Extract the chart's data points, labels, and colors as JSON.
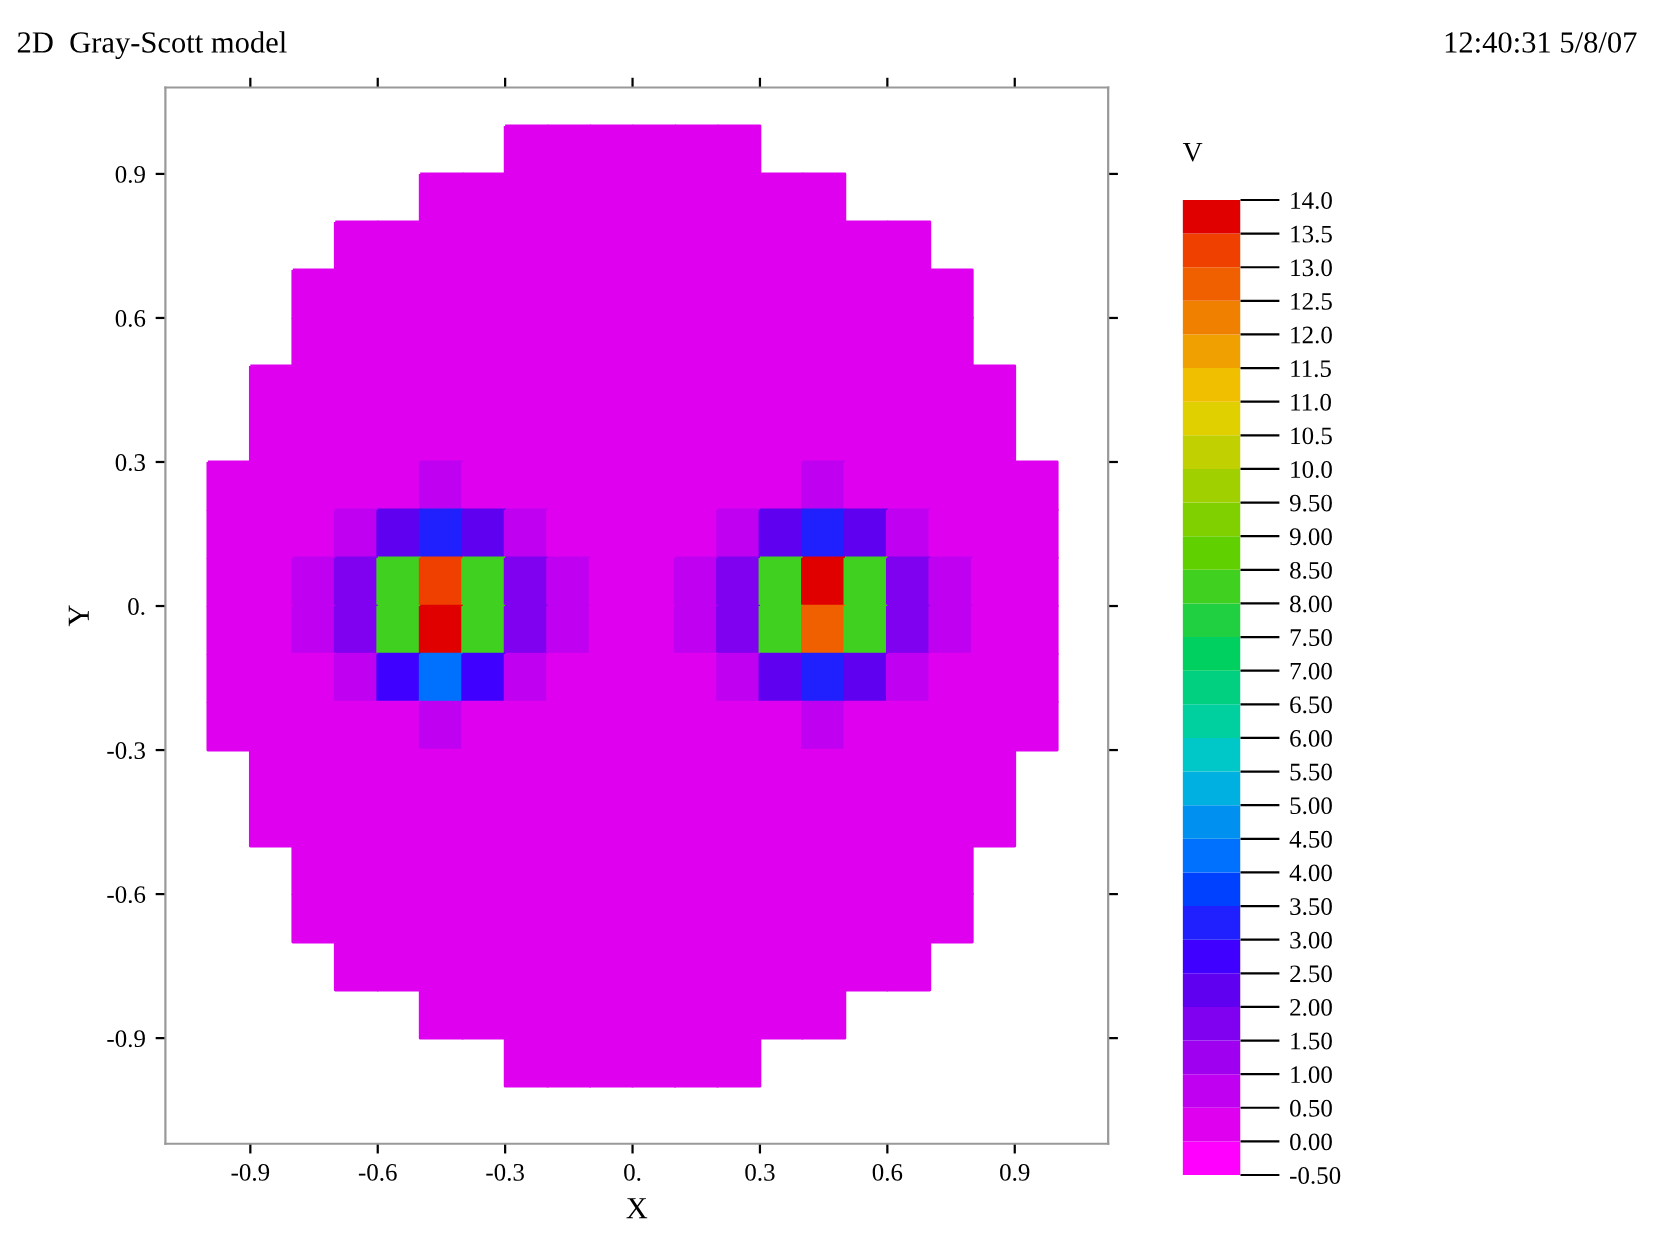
{
  "chart_data": {
    "type": "heatmap",
    "title": "2D  Gray-Scott model",
    "xlabel": "X",
    "ylabel": "Y",
    "clabel": "V",
    "annotations": [
      "12:40:31 5/8/07"
    ],
    "x": [
      -0.95,
      -0.85,
      -0.75,
      -0.65,
      -0.55,
      -0.45,
      -0.35,
      -0.25,
      -0.15,
      -0.05,
      0.05,
      0.15,
      0.25,
      0.35,
      0.45,
      0.55,
      0.65,
      0.75,
      0.85,
      0.95
    ],
    "y": [
      0.95,
      0.85,
      0.75,
      0.65,
      0.55,
      0.45,
      0.35,
      0.25,
      0.15,
      0.05,
      -0.05,
      -0.15,
      -0.25,
      -0.35,
      -0.45,
      -0.55,
      -0.65,
      -0.75,
      -0.85,
      -0.95
    ],
    "cells": [
      [
        null,
        null,
        null,
        null,
        null,
        null,
        null,
        0.2,
        0.2,
        0.2,
        0.2,
        0.2,
        0.2,
        null,
        null,
        null,
        null,
        null,
        null,
        null
      ],
      [
        null,
        null,
        null,
        null,
        null,
        0.2,
        0.2,
        0.2,
        0.2,
        0.2,
        0.2,
        0.2,
        0.2,
        0.2,
        0.2,
        null,
        null,
        null,
        null,
        null
      ],
      [
        null,
        null,
        null,
        0.2,
        0.2,
        0.2,
        0.2,
        0.2,
        0.2,
        0.2,
        0.2,
        0.2,
        0.2,
        0.2,
        0.2,
        0.2,
        0.2,
        null,
        null,
        null
      ],
      [
        null,
        null,
        0.2,
        0.2,
        0.2,
        0.2,
        0.2,
        0.2,
        0.2,
        0.2,
        0.2,
        0.2,
        0.2,
        0.2,
        0.2,
        0.2,
        0.2,
        0.2,
        null,
        null
      ],
      [
        null,
        null,
        0.2,
        0.2,
        0.2,
        0.2,
        0.2,
        0.2,
        0.2,
        0.2,
        0.2,
        0.2,
        0.2,
        0.2,
        0.2,
        0.2,
        0.2,
        0.2,
        null,
        null
      ],
      [
        null,
        0.2,
        0.2,
        0.2,
        0.2,
        0.2,
        0.2,
        0.2,
        0.2,
        0.2,
        0.2,
        0.2,
        0.2,
        0.2,
        0.2,
        0.2,
        0.2,
        0.2,
        0.2,
        null
      ],
      [
        null,
        0.2,
        0.2,
        0.2,
        0.2,
        0.2,
        0.2,
        0.2,
        0.2,
        0.2,
        0.2,
        0.2,
        0.2,
        0.2,
        0.2,
        0.2,
        0.2,
        0.2,
        0.2,
        null
      ],
      [
        0.2,
        0.2,
        0.2,
        0.2,
        0.2,
        0.5,
        0.2,
        0.2,
        0.2,
        0.2,
        0.2,
        0.2,
        0.2,
        0.2,
        0.5,
        0.2,
        0.2,
        0.2,
        0.2,
        0.2
      ],
      [
        0.2,
        0.2,
        0.2,
        0.5,
        2,
        3,
        2,
        0.5,
        0.2,
        0.2,
        0.2,
        0.2,
        0.5,
        2,
        3,
        2,
        0.5,
        0.2,
        0.2,
        0.2
      ],
      [
        0.2,
        0.2,
        0.5,
        1.5,
        8,
        13,
        8,
        1.5,
        0.5,
        0.2,
        0.2,
        0.5,
        1.5,
        8,
        13.5,
        8,
        1.5,
        0.5,
        0.2,
        0.2
      ],
      [
        0.2,
        0.2,
        0.5,
        1.5,
        8,
        14,
        8,
        1.5,
        0.5,
        0.2,
        0.2,
        0.5,
        1.5,
        8,
        12.5,
        8,
        1.5,
        0.5,
        0.2,
        0.2
      ],
      [
        0.2,
        0.2,
        0.2,
        0.5,
        2.5,
        4,
        2.5,
        0.5,
        0.2,
        0.2,
        0.2,
        0.2,
        0.5,
        2,
        3,
        2,
        0.5,
        0.2,
        0.2,
        0.2
      ],
      [
        0.2,
        0.2,
        0.2,
        0.2,
        0.2,
        0.5,
        0.2,
        0.2,
        0.2,
        0.2,
        0.2,
        0.2,
        0.2,
        0.2,
        0.5,
        0.2,
        0.2,
        0.2,
        0.2,
        0.2
      ],
      [
        null,
        0.2,
        0.2,
        0.2,
        0.2,
        0.2,
        0.2,
        0.2,
        0.2,
        0.2,
        0.2,
        0.2,
        0.2,
        0.2,
        0.2,
        0.2,
        0.2,
        0.2,
        0.2,
        null
      ],
      [
        null,
        0.2,
        0.2,
        0.2,
        0.2,
        0.2,
        0.2,
        0.2,
        0.2,
        0.2,
        0.2,
        0.2,
        0.2,
        0.2,
        0.2,
        0.2,
        0.2,
        0.2,
        0.2,
        null
      ],
      [
        null,
        null,
        0.2,
        0.2,
        0.2,
        0.2,
        0.2,
        0.2,
        0.2,
        0.2,
        0.2,
        0.2,
        0.2,
        0.2,
        0.2,
        0.2,
        0.2,
        0.2,
        null,
        null
      ],
      [
        null,
        null,
        0.2,
        0.2,
        0.2,
        0.2,
        0.2,
        0.2,
        0.2,
        0.2,
        0.2,
        0.2,
        0.2,
        0.2,
        0.2,
        0.2,
        0.2,
        0.2,
        null,
        null
      ],
      [
        null,
        null,
        null,
        0.2,
        0.2,
        0.2,
        0.2,
        0.2,
        0.2,
        0.2,
        0.2,
        0.2,
        0.2,
        0.2,
        0.2,
        0.2,
        0.2,
        null,
        null,
        null
      ],
      [
        null,
        null,
        null,
        null,
        null,
        0.2,
        0.2,
        0.2,
        0.2,
        0.2,
        0.2,
        0.2,
        0.2,
        0.2,
        0.2,
        null,
        null,
        null,
        null,
        null
      ],
      [
        null,
        null,
        null,
        null,
        null,
        null,
        null,
        0.2,
        0.2,
        0.2,
        0.2,
        0.2,
        0.2,
        null,
        null,
        null,
        null,
        null,
        null,
        null
      ]
    ],
    "xlim": [
      -1.1,
      1.12
    ],
    "ylim": [
      -1.12,
      1.08
    ],
    "xticks": [
      {
        "value": -0.9,
        "label": "-0.9"
      },
      {
        "value": -0.6,
        "label": "-0.6"
      },
      {
        "value": -0.3,
        "label": "-0.3"
      },
      {
        "value": 0,
        "label": "0."
      },
      {
        "value": 0.3,
        "label": "0.3"
      },
      {
        "value": 0.6,
        "label": "0.6"
      },
      {
        "value": 0.9,
        "label": "0.9"
      }
    ],
    "yticks": [
      {
        "value": -0.9,
        "label": "-0.9"
      },
      {
        "value": -0.6,
        "label": "-0.6"
      },
      {
        "value": -0.3,
        "label": "-0.3"
      },
      {
        "value": 0,
        "label": "0."
      },
      {
        "value": 0.3,
        "label": "0.3"
      },
      {
        "value": 0.6,
        "label": "0.6"
      },
      {
        "value": 0.9,
        "label": "0.9"
      }
    ],
    "clim": [
      -0.5,
      14
    ],
    "cticks": [
      {
        "value": -0.5,
        "label": "-0.50"
      },
      {
        "value": 0,
        "label": "0.00"
      },
      {
        "value": 0.5,
        "label": "0.50"
      },
      {
        "value": 1,
        "label": "1.00"
      },
      {
        "value": 1.5,
        "label": "1.50"
      },
      {
        "value": 2,
        "label": "2.00"
      },
      {
        "value": 2.5,
        "label": "2.50"
      },
      {
        "value": 3,
        "label": "3.00"
      },
      {
        "value": 3.5,
        "label": "3.50"
      },
      {
        "value": 4,
        "label": "4.00"
      },
      {
        "value": 4.5,
        "label": "4.50"
      },
      {
        "value": 5,
        "label": "5.00"
      },
      {
        "value": 5.5,
        "label": "5.50"
      },
      {
        "value": 6,
        "label": "6.00"
      },
      {
        "value": 6.5,
        "label": "6.50"
      },
      {
        "value": 7,
        "label": "7.00"
      },
      {
        "value": 7.5,
        "label": "7.50"
      },
      {
        "value": 8,
        "label": "8.00"
      },
      {
        "value": 8.5,
        "label": "8.50"
      },
      {
        "value": 9,
        "label": "9.00"
      },
      {
        "value": 9.5,
        "label": "9.50"
      },
      {
        "value": 10,
        "label": "10.0"
      },
      {
        "value": 10.5,
        "label": "10.5"
      },
      {
        "value": 11,
        "label": "11.0"
      },
      {
        "value": 11.5,
        "label": "11.5"
      },
      {
        "value": 12,
        "label": "12.0"
      },
      {
        "value": 12.5,
        "label": "12.5"
      },
      {
        "value": 13,
        "label": "13.0"
      },
      {
        "value": 13.5,
        "label": "13.5"
      },
      {
        "value": 14,
        "label": "14.0"
      }
    ],
    "colors": [
      "#ff00ff",
      "#e000f0",
      "#c000f0",
      "#a000f0",
      "#8000f0",
      "#6000f0",
      "#4000ff",
      "#2020ff",
      "#0040ff",
      "#0070ff",
      "#0090f0",
      "#00b0e0",
      "#00c8c8",
      "#00d0a0",
      "#00d080",
      "#00d060",
      "#20d040",
      "#40d020",
      "#60d000",
      "#80d000",
      "#a0d000",
      "#c0d000",
      "#e0d000",
      "#f0c000",
      "#f0a000",
      "#f08000",
      "#f06000",
      "#f04000",
      "#e00000"
    ],
    "grid": false
  }
}
